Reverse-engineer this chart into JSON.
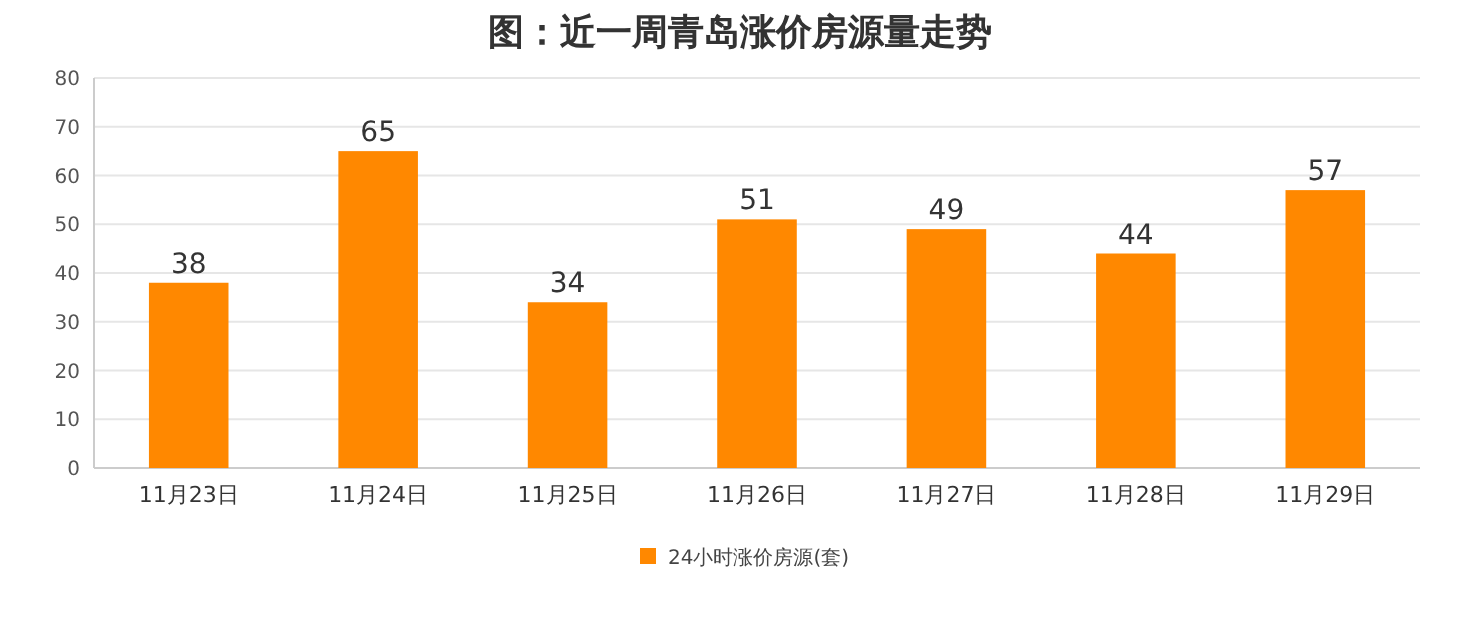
{
  "chart_data": {
    "type": "bar",
    "title": "图：近一周青岛涨价房源量走势",
    "categories": [
      "11月23日",
      "11月24日",
      "11月25日",
      "11月26日",
      "11月27日",
      "11月28日",
      "11月29日"
    ],
    "series": [
      {
        "name": "24小时涨价房源(套)",
        "color": "#ff8800",
        "values": [
          38,
          65,
          34,
          51,
          49,
          44,
          57
        ]
      }
    ],
    "ylim": [
      0,
      80
    ],
    "yticks": [
      0,
      10,
      20,
      30,
      40,
      50,
      60,
      70,
      80
    ],
    "grid": "y",
    "data_labels": true,
    "legend": "bottom"
  }
}
